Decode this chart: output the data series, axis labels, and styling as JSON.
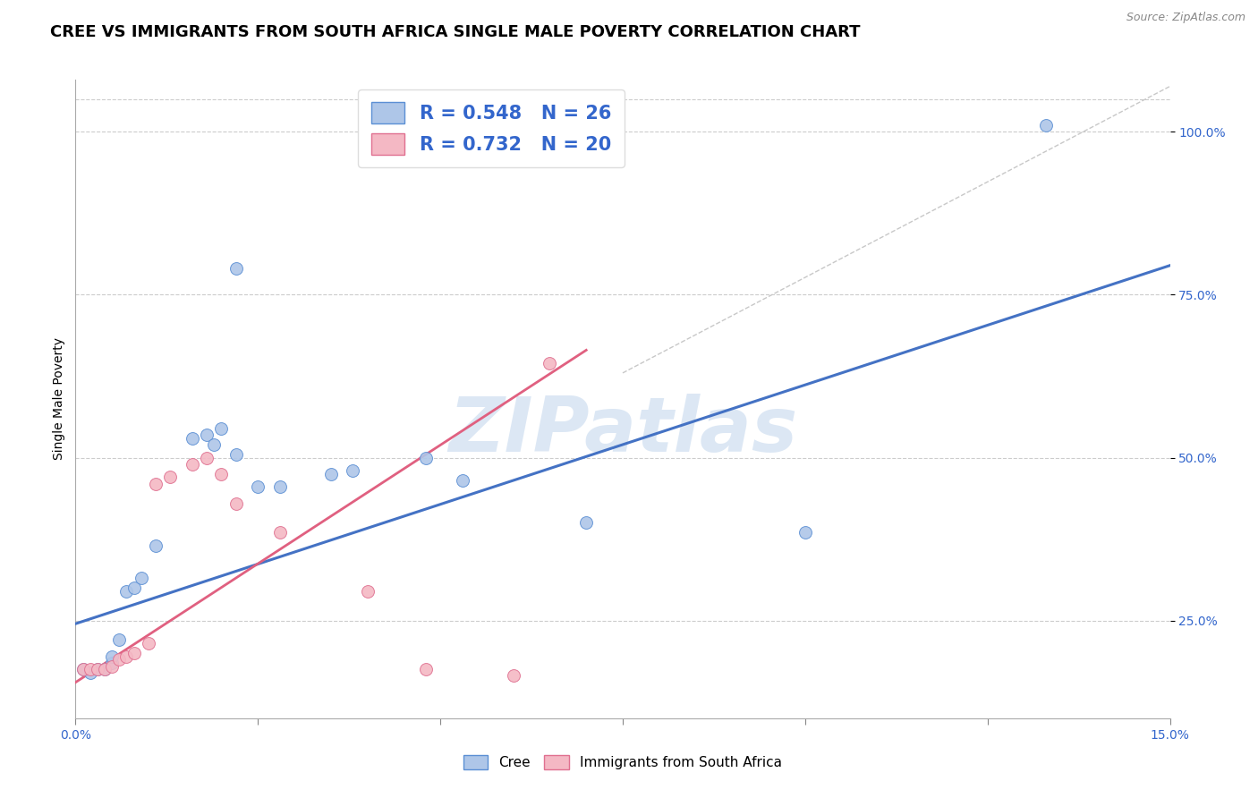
{
  "title": "CREE VS IMMIGRANTS FROM SOUTH AFRICA SINGLE MALE POVERTY CORRELATION CHART",
  "source": "Source: ZipAtlas.com",
  "ylabel": "Single Male Poverty",
  "xlim": [
    0.0,
    0.15
  ],
  "ylim": [
    0.1,
    1.08
  ],
  "xticks": [
    0.0,
    0.025,
    0.05,
    0.075,
    0.1,
    0.125,
    0.15
  ],
  "xticklabels": [
    "0.0%",
    "",
    "",
    "",
    "",
    "",
    "15.0%"
  ],
  "ytick_positions": [
    0.25,
    0.5,
    0.75,
    1.0
  ],
  "ytick_labels": [
    "25.0%",
    "50.0%",
    "75.0%",
    "100.0%"
  ],
  "blue_scatter": [
    [
      0.001,
      0.175
    ],
    [
      0.002,
      0.17
    ],
    [
      0.003,
      0.175
    ],
    [
      0.004,
      0.175
    ],
    [
      0.005,
      0.185
    ],
    [
      0.005,
      0.195
    ],
    [
      0.006,
      0.22
    ],
    [
      0.007,
      0.295
    ],
    [
      0.008,
      0.3
    ],
    [
      0.009,
      0.315
    ],
    [
      0.011,
      0.365
    ],
    [
      0.016,
      0.53
    ],
    [
      0.018,
      0.535
    ],
    [
      0.019,
      0.52
    ],
    [
      0.02,
      0.545
    ],
    [
      0.022,
      0.505
    ],
    [
      0.025,
      0.455
    ],
    [
      0.028,
      0.455
    ],
    [
      0.035,
      0.475
    ],
    [
      0.038,
      0.48
    ],
    [
      0.048,
      0.5
    ],
    [
      0.053,
      0.465
    ],
    [
      0.07,
      0.4
    ],
    [
      0.1,
      0.385
    ],
    [
      0.022,
      0.79
    ],
    [
      0.133,
      1.01
    ]
  ],
  "pink_scatter": [
    [
      0.001,
      0.175
    ],
    [
      0.002,
      0.175
    ],
    [
      0.003,
      0.175
    ],
    [
      0.004,
      0.175
    ],
    [
      0.005,
      0.18
    ],
    [
      0.006,
      0.19
    ],
    [
      0.007,
      0.195
    ],
    [
      0.008,
      0.2
    ],
    [
      0.01,
      0.215
    ],
    [
      0.011,
      0.46
    ],
    [
      0.013,
      0.47
    ],
    [
      0.016,
      0.49
    ],
    [
      0.018,
      0.5
    ],
    [
      0.02,
      0.475
    ],
    [
      0.022,
      0.43
    ],
    [
      0.028,
      0.385
    ],
    [
      0.04,
      0.295
    ],
    [
      0.048,
      0.175
    ],
    [
      0.06,
      0.165
    ],
    [
      0.065,
      0.645
    ]
  ],
  "blue_line_x": [
    0.0,
    0.15
  ],
  "blue_line_y": [
    0.245,
    0.795
  ],
  "pink_line_x": [
    0.0,
    0.07
  ],
  "pink_line_y": [
    0.155,
    0.665
  ],
  "diag_line_x": [
    0.075,
    0.15
  ],
  "diag_line_y": [
    0.63,
    1.07
  ],
  "blue_color": "#aec6e8",
  "blue_edge_color": "#5b8fd4",
  "blue_line_color": "#4472c4",
  "pink_color": "#f4b8c4",
  "pink_edge_color": "#e07090",
  "pink_line_color": "#e06080",
  "diag_color": "#c8c8c8",
  "watermark": "ZIPatlas",
  "legend1_R_blue": "R = 0.548",
  "legend1_N_blue": "N = 26",
  "legend1_R_pink": "R = 0.732",
  "legend1_N_pink": "N = 20",
  "legend2_blue": "Cree",
  "legend2_pink": "Immigrants from South Africa",
  "title_fontsize": 13,
  "axis_label_fontsize": 10,
  "tick_fontsize": 10,
  "source_fontsize": 9
}
